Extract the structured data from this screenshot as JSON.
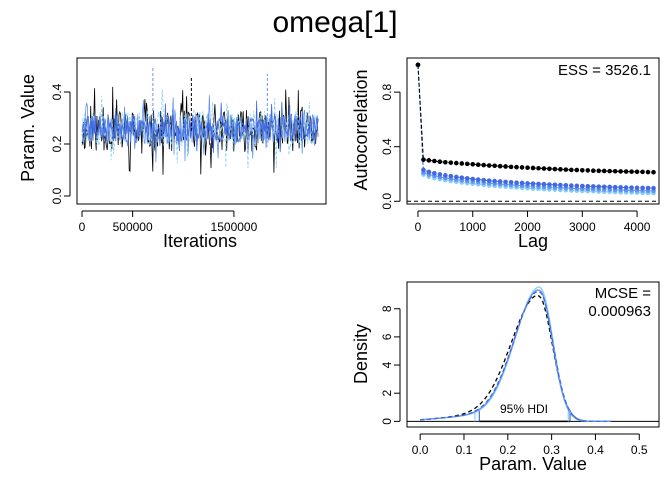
{
  "title": "omega[1]",
  "colors": {
    "chain_dark": "#000000",
    "chain_royal": "#4169E1",
    "chain_cornflower": "#6495ED",
    "chain_sky": "#87CEFA"
  },
  "chart_data": [
    {
      "id": "trace",
      "type": "line",
      "xlabel": "Iterations",
      "ylabel": "Param. Value",
      "xlim": [
        0,
        2350000
      ],
      "ylim": [
        0,
        0.5
      ],
      "xticks": [
        0,
        500000,
        1500000
      ],
      "xtick_labels": [
        "0",
        "500000",
        "1500000"
      ],
      "yticks": [
        0.0,
        0.2,
        0.4
      ],
      "ytick_labels": [
        "0.0",
        "0.2",
        "0.4"
      ],
      "series": [
        {
          "color": "#000000",
          "center": 0.25,
          "spread": 0.08,
          "min": 0.0,
          "max": 0.43
        },
        {
          "color": "#87CEFA",
          "center": 0.26,
          "spread": 0.07,
          "min": 0.02,
          "max": 0.45
        },
        {
          "color": "#6495ED",
          "center": 0.26,
          "spread": 0.06,
          "min": 0.03,
          "max": 0.5
        },
        {
          "color": "#4169E1",
          "center": 0.26,
          "spread": 0.05,
          "min": 0.09,
          "max": 0.38
        }
      ],
      "spikes": [
        {
          "x": 1080000,
          "y": 0.46,
          "color": "#000000"
        },
        {
          "x": 700000,
          "y": 0.5,
          "color": "#6495ED"
        },
        {
          "x": 1830000,
          "y": 0.47,
          "color": "#6495ED"
        }
      ]
    },
    {
      "id": "acf",
      "type": "line",
      "xlabel": "Lag",
      "ylabel": "Autocorrelation",
      "annotation": "ESS = 3526.1",
      "xlim": [
        -200,
        4400
      ],
      "ylim": [
        -0.02,
        1.05
      ],
      "xticks": [
        0,
        1000,
        2000,
        3000,
        4000
      ],
      "yticks": [
        0.0,
        0.4,
        0.8
      ],
      "ytick_labels": [
        "0.0",
        "0.4",
        "0.8"
      ],
      "lag_step": 100,
      "lag_max": 4300,
      "series": [
        {
          "color": "#000000",
          "values": [
            1.0,
            0.305,
            0.3,
            0.295,
            0.29,
            0.286,
            0.283,
            0.28,
            0.277,
            0.274,
            0.271,
            0.268,
            0.265,
            0.262,
            0.26,
            0.257,
            0.255,
            0.252,
            0.25,
            0.248,
            0.246,
            0.244,
            0.242,
            0.24,
            0.238,
            0.236,
            0.234,
            0.232,
            0.23,
            0.229,
            0.227,
            0.226,
            0.224,
            0.223,
            0.222,
            0.221,
            0.22,
            0.219,
            0.218,
            0.217,
            0.216,
            0.215,
            0.214,
            0.213
          ]
        },
        {
          "color": "#4169E1",
          "values": [
            1.0,
            0.23,
            0.215,
            0.205,
            0.197,
            0.19,
            0.184,
            0.178,
            0.173,
            0.168,
            0.163,
            0.159,
            0.155,
            0.151,
            0.148,
            0.145,
            0.142,
            0.139,
            0.136,
            0.134,
            0.131,
            0.129,
            0.127,
            0.125,
            0.123,
            0.121,
            0.119,
            0.117,
            0.115,
            0.113,
            0.112,
            0.11,
            0.109,
            0.107,
            0.106,
            0.105,
            0.103,
            0.102,
            0.101,
            0.1,
            0.099,
            0.098,
            0.097,
            0.096
          ]
        },
        {
          "color": "#6495ED",
          "values": [
            1.0,
            0.21,
            0.196,
            0.186,
            0.178,
            0.171,
            0.165,
            0.159,
            0.154,
            0.149,
            0.144,
            0.14,
            0.136,
            0.132,
            0.129,
            0.126,
            0.123,
            0.12,
            0.117,
            0.114,
            0.112,
            0.109,
            0.107,
            0.105,
            0.103,
            0.101,
            0.099,
            0.097,
            0.095,
            0.093,
            0.092,
            0.09,
            0.089,
            0.087,
            0.086,
            0.085,
            0.083,
            0.082,
            0.081,
            0.08,
            0.079,
            0.078,
            0.077,
            0.076
          ]
        },
        {
          "color": "#87CEFA",
          "values": [
            1.0,
            0.195,
            0.18,
            0.17,
            0.162,
            0.155,
            0.149,
            0.143,
            0.138,
            0.133,
            0.128,
            0.124,
            0.12,
            0.116,
            0.113,
            0.11,
            0.107,
            0.104,
            0.101,
            0.098,
            0.096,
            0.093,
            0.091,
            0.089,
            0.087,
            0.085,
            0.083,
            0.081,
            0.079,
            0.077,
            0.076,
            0.074,
            0.073,
            0.071,
            0.07,
            0.069,
            0.067,
            0.066,
            0.065,
            0.064,
            0.063,
            0.062,
            0.061,
            0.06
          ]
        }
      ]
    },
    {
      "id": "density",
      "type": "area",
      "xlabel": "Param. Value",
      "ylabel": "Density",
      "annotation_line1": "MCSE =",
      "annotation_line2": "0.000963",
      "hdi_label": "95% HDI",
      "xlim": [
        -0.03,
        0.545
      ],
      "ylim": [
        -0.4,
        9.9
      ],
      "xticks": [
        0.0,
        0.1,
        0.2,
        0.3,
        0.4,
        0.5
      ],
      "xtick_labels": [
        "0.0",
        "0.1",
        "0.2",
        "0.3",
        "0.4",
        "0.5"
      ],
      "yticks": [
        0,
        2,
        4,
        6,
        8
      ],
      "ytick_labels": [
        "0",
        "2",
        "4",
        "6",
        "8"
      ],
      "mode": 0.272,
      "hdi": [
        0.135,
        0.342
      ],
      "series": [
        {
          "color": "#000000",
          "dashed": true,
          "peak": 8.9,
          "left_sd": 0.062,
          "right_sd": 0.032,
          "mode": 0.27
        },
        {
          "color": "#87CEFA",
          "dashed": false,
          "peak": 9.5,
          "left_sd": 0.056,
          "right_sd": 0.03,
          "mode": 0.273
        },
        {
          "color": "#6495ED",
          "dashed": false,
          "peak": 9.3,
          "left_sd": 0.057,
          "right_sd": 0.03,
          "mode": 0.272
        },
        {
          "color": "#4169E1",
          "dashed": true,
          "peak": 9.2,
          "left_sd": 0.058,
          "right_sd": 0.031,
          "mode": 0.272
        }
      ]
    }
  ]
}
